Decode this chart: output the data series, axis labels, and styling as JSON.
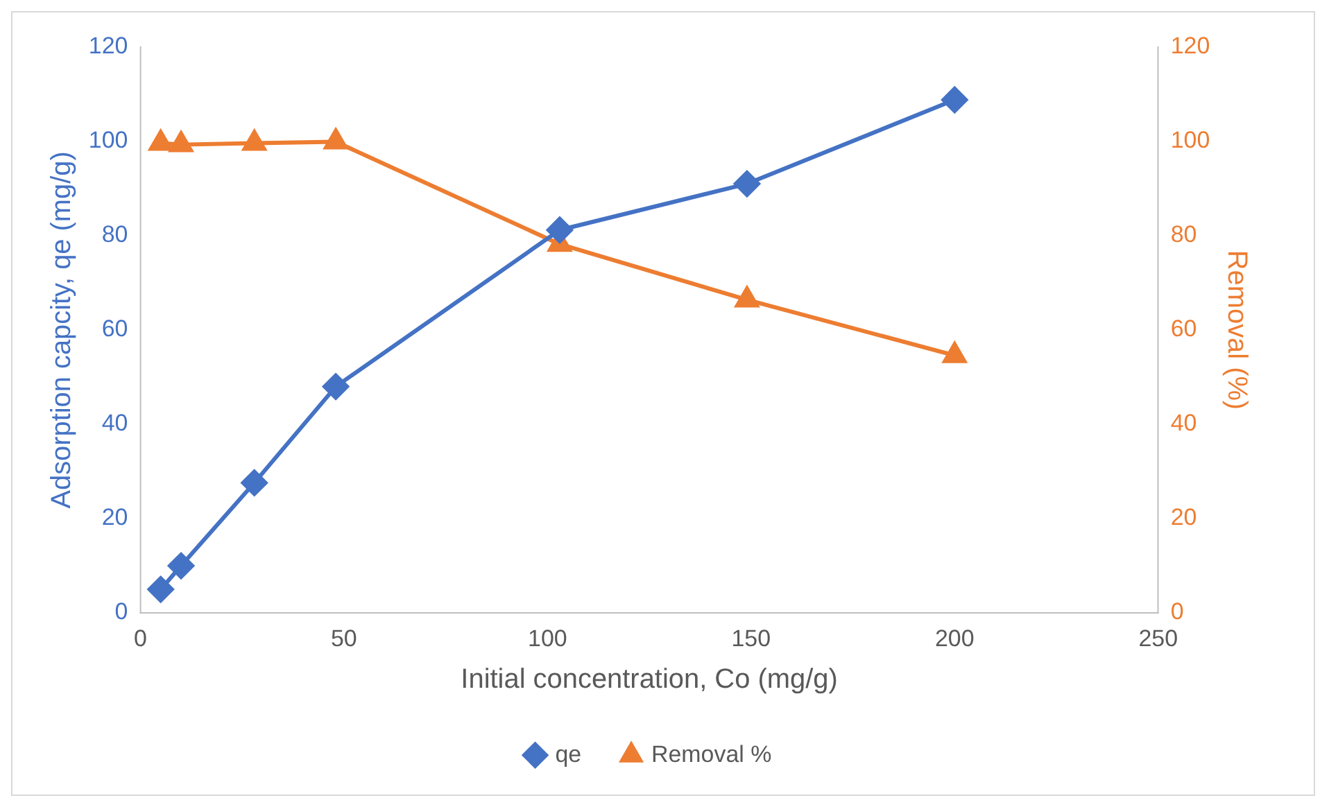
{
  "chart_data": {
    "type": "line",
    "xlabel": "Initial concentration, Co (mg/g)",
    "ylabel": "Adsorption capcity, qe (mg/g)",
    "y2label": "Removal (%)",
    "x": [
      5,
      10,
      28,
      48,
      103,
      149,
      200
    ],
    "xlim": [
      0,
      250
    ],
    "xticks": [
      0,
      50,
      100,
      150,
      200,
      250
    ],
    "ylim": [
      0,
      120
    ],
    "yticks": [
      0,
      20,
      40,
      60,
      80,
      100,
      120
    ],
    "y2lim": [
      0,
      120
    ],
    "y2ticks": [
      0,
      20,
      40,
      60,
      80,
      100,
      120
    ],
    "series": [
      {
        "name": "qe",
        "color": "#4472c4",
        "marker": "diamond",
        "values": [
          5,
          10,
          27.6,
          48,
          81.2,
          91,
          108.8
        ]
      },
      {
        "name": "Removal %",
        "color": "#ed7d31",
        "marker": "triangle",
        "axis": "y2",
        "values": [
          99.6,
          99.3,
          99.6,
          99.9,
          78.2,
          66.4,
          54.6
        ]
      }
    ],
    "grid": false,
    "legend": "bottom",
    "line_style": "solid"
  }
}
